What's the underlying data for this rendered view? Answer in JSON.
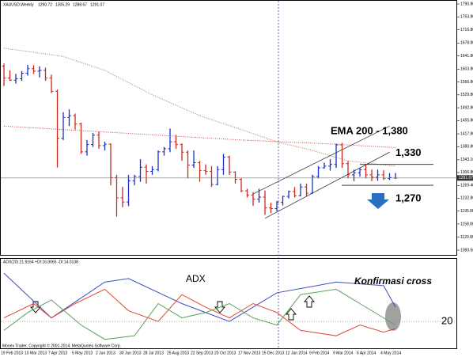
{
  "chart_data": [
    {
      "type": "ohlc",
      "title": "XAUUSD,Weekly",
      "categories": [
        "19 Feb 2013",
        null,
        null,
        null,
        "10 Mar 2013",
        null,
        null,
        null,
        "7 Apr 2013",
        null,
        null,
        null,
        "5 May 2013",
        null,
        null,
        null,
        "2 Jun 2013",
        null,
        null,
        null,
        "30 Jun 2013",
        null,
        null,
        null,
        "28 Jul 2013",
        null,
        null,
        null,
        "25 Aug 2013",
        null,
        null,
        null,
        "22 Sep 2013",
        null,
        null,
        null,
        "20 Oct 2013",
        null,
        null,
        null,
        "17 Nov 2013",
        null,
        null,
        null,
        "15 Dec 2013",
        null,
        null,
        null,
        "12 Jan 2014",
        null,
        null,
        null,
        "9 Feb 2014",
        null,
        null,
        null,
        "9 Mar 2014",
        null,
        null,
        null,
        "6 Apr 2014",
        null,
        null,
        null,
        "4 May 2014",
        null,
        null
      ],
      "open": [
        1612,
        1578,
        1572,
        1576,
        1592,
        1605,
        1598,
        1600,
        1578,
        1540,
        1405,
        1465,
        1470,
        1446,
        1366,
        1387,
        1414,
        1384,
        1388,
        1292,
        1234,
        1222,
        1283,
        1295,
        1322,
        1310,
        1315,
        1366,
        1375,
        1395,
        1387,
        1365,
        1328,
        1335,
        1312,
        1310,
        1272,
        1315,
        1351,
        1308,
        1287,
        1254,
        1242,
        1230,
        1236,
        1205,
        1203,
        1221,
        1238,
        1252,
        1240,
        1265,
        1247,
        1295,
        1320,
        1325,
        1330,
        1386,
        1332,
        1300,
        1306,
        1315,
        1300,
        1293,
        1300,
        1290,
        1290.72
      ],
      "high": [
        1620,
        1600,
        1590,
        1598,
        1616,
        1615,
        1612,
        1608,
        1588,
        1545,
        1480,
        1488,
        1476,
        1450,
        1400,
        1420,
        1424,
        1395,
        1390,
        1300,
        1265,
        1300,
        1300,
        1345,
        1330,
        1325,
        1370,
        1380,
        1433,
        1415,
        1390,
        1370,
        1370,
        1340,
        1330,
        1325,
        1325,
        1360,
        1355,
        1310,
        1290,
        1260,
        1250,
        1260,
        1255,
        1220,
        1225,
        1240,
        1255,
        1265,
        1275,
        1275,
        1300,
        1325,
        1335,
        1345,
        1390,
        1392,
        1340,
        1315,
        1320,
        1330,
        1315,
        1315,
        1313,
        1305,
        1305.29
      ],
      "low": [
        1555,
        1570,
        1562,
        1570,
        1585,
        1590,
        1580,
        1570,
        1535,
        1321,
        1400,
        1440,
        1430,
        1360,
        1355,
        1380,
        1375,
        1370,
        1270,
        1180,
        1207,
        1210,
        1270,
        1280,
        1275,
        1300,
        1310,
        1355,
        1365,
        1375,
        1340,
        1290,
        1320,
        1280,
        1300,
        1265,
        1270,
        1300,
        1300,
        1275,
        1250,
        1235,
        1211,
        1220,
        1185,
        1190,
        1195,
        1212,
        1232,
        1235,
        1238,
        1238,
        1245,
        1290,
        1318,
        1312,
        1320,
        1320,
        1290,
        1282,
        1295,
        1290,
        1282,
        1283,
        1285,
        1285,
        1288.67
      ],
      "close": [
        1578,
        1572,
        1576,
        1592,
        1605,
        1598,
        1600,
        1578,
        1540,
        1405,
        1465,
        1470,
        1446,
        1366,
        1387,
        1414,
        1384,
        1388,
        1292,
        1234,
        1222,
        1283,
        1295,
        1322,
        1310,
        1315,
        1366,
        1375,
        1395,
        1387,
        1365,
        1328,
        1335,
        1312,
        1310,
        1272,
        1315,
        1351,
        1308,
        1287,
        1254,
        1242,
        1230,
        1236,
        1205,
        1203,
        1221,
        1238,
        1252,
        1240,
        1265,
        1247,
        1295,
        1320,
        1325,
        1330,
        1386,
        1332,
        1300,
        1306,
        1315,
        1300,
        1293,
        1300,
        1290,
        1292,
        1291.07
      ],
      "up_color": "#1a2fc4",
      "down_color": "#c8281e",
      "ylim": [
        1070,
        1800
      ],
      "yticks": [
        {
          "value": 1790.8,
          "label": "1790.80"
        },
        {
          "value": 1753.8,
          "label": "1753.80"
        },
        {
          "value": 1716.8,
          "label": "1716.80"
        },
        {
          "value": 1678.8,
          "label": "1678.80"
        },
        {
          "value": 1641.8,
          "label": "1641.80"
        },
        {
          "value": 1603.8,
          "label": "1603.80"
        },
        {
          "value": 1566.8,
          "label": "1566.80"
        },
        {
          "value": 1529.8,
          "label": "1529.80"
        },
        {
          "value": 1492.8,
          "label": "1492.80"
        },
        {
          "value": 1455.8,
          "label": "1455.80"
        },
        {
          "value": 1417.8,
          "label": "1417.80"
        },
        {
          "value": 1380.8,
          "label": "1380.80"
        },
        {
          "value": 1343.1,
          "label": "1343.10"
        },
        {
          "value": 1306.8,
          "label": "1306.80"
        },
        {
          "value": 1269.4,
          "label": "1269.40"
        },
        {
          "value": 1232.8,
          "label": "1232.80"
        },
        {
          "value": 1195.8,
          "label": "1195.80"
        },
        {
          "value": 1158.8,
          "label": "1158.80"
        },
        {
          "value": 1120.8,
          "label": "1120.80"
        },
        {
          "value": 1083.5,
          "label": "1083.50"
        }
      ],
      "last_price": 1291.07,
      "overlays": [
        {
          "color": "#b07850",
          "x": [
            0,
            10,
            17,
            25,
            33,
            40,
            46,
            52,
            58,
            66
          ],
          "values": [
            1664,
            1640,
            1600,
            1530,
            1470,
            1430,
            1395,
            1370,
            1340,
            1325
          ]
        },
        {
          "color": "#d04040",
          "x": [
            0,
            20,
            40,
            56,
            66
          ],
          "values": [
            1440,
            1420,
            1400,
            1388,
            1378
          ]
        }
      ],
      "trendlines": [
        {
          "x": [
            44,
            65
          ],
          "values": [
            1175,
            1365
          ]
        },
        {
          "x": [
            42,
            65
          ],
          "values": [
            1245,
            1440
          ]
        }
      ],
      "levels": [
        {
          "value": 1330,
          "label": "1,330"
        },
        {
          "value": 1270,
          "label": "1,270"
        }
      ],
      "annotations": [
        "EMA 200 -  1,380"
      ]
    },
    {
      "type": "line",
      "title": "ADX(20) 21.9164 +DI:16.9065 -DI:14.0138",
      "ylim": [
        5,
        55
      ],
      "series": [
        {
          "color": "#3a4fc0",
          "x": [
            0,
            8,
            17,
            21,
            30,
            38,
            46,
            56,
            64,
            66
          ],
          "values": [
            47,
            22,
            42,
            44,
            30,
            20,
            36,
            42,
            40,
            28
          ]
        },
        {
          "color": "#e0452f",
          "x": [
            0,
            5,
            8,
            12,
            17,
            21,
            26,
            30,
            34,
            38,
            42,
            46,
            50,
            56,
            60,
            64,
            66
          ],
          "values": [
            22,
            30,
            22,
            30,
            38,
            26,
            20,
            35,
            28,
            22,
            30,
            25,
            15,
            12,
            18,
            14,
            16
          ]
        },
        {
          "color": "#5aa05a",
          "x": [
            0,
            4,
            8,
            13,
            17,
            22,
            26,
            30,
            34,
            38,
            42,
            46,
            50,
            56,
            60,
            66
          ],
          "values": [
            15,
            25,
            32,
            18,
            10,
            12,
            30,
            22,
            25,
            30,
            22,
            18,
            35,
            38,
            30,
            18
          ]
        }
      ],
      "levels": [
        20
      ],
      "annotations": [
        "ADX",
        "Konfirmasi cross"
      ]
    }
  ],
  "footer": "Monex Trader, Copyright © 2001-2014, MetaQuotes Software Corp."
}
